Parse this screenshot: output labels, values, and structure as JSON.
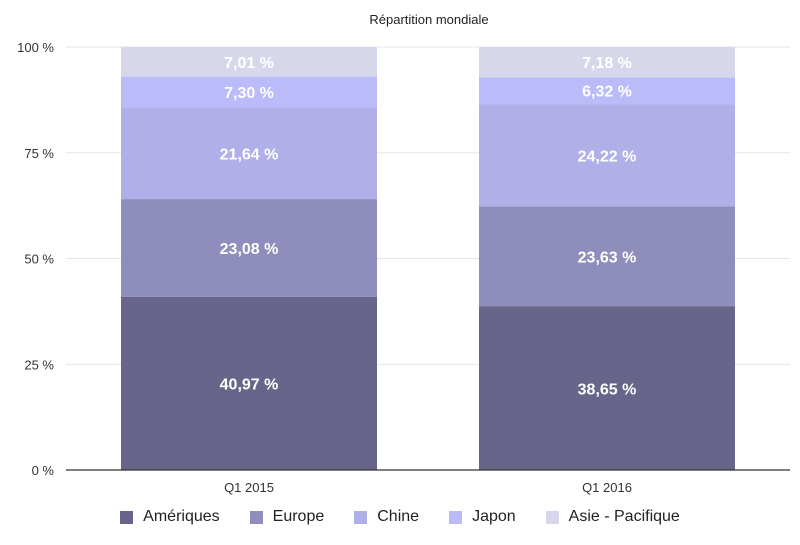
{
  "chart_data": {
    "type": "bar",
    "stacked": true,
    "title": "Répartition mondiale",
    "categories": [
      "Q1 2015",
      "Q1 2016"
    ],
    "series": [
      {
        "name": "Amériques",
        "color": "#67668a",
        "values": [
          40.97,
          38.65
        ],
        "labels": [
          "40,97 %",
          "38,65 %"
        ]
      },
      {
        "name": "Europe",
        "color": "#8f8dbc",
        "values": [
          23.08,
          23.63
        ],
        "labels": [
          "23,08 %",
          "23,63 %"
        ]
      },
      {
        "name": "Chine",
        "color": "#b1afe8",
        "values": [
          21.64,
          24.22
        ],
        "labels": [
          "21,64 %",
          "24,22 %"
        ]
      },
      {
        "name": "Japon",
        "color": "#bcbbf9",
        "values": [
          7.3,
          6.32
        ],
        "labels": [
          "7,30 %",
          "6,32 %"
        ]
      },
      {
        "name": "Asie - Pacifique",
        "color": "#d7d7ec",
        "values": [
          7.01,
          7.18
        ],
        "labels": [
          "7,01 %",
          "7,18 %"
        ]
      }
    ],
    "ylim": [
      0,
      100
    ],
    "yticks": [
      0,
      25,
      50,
      75,
      100
    ],
    "ytick_labels": [
      "0 %",
      "25 %",
      "50 %",
      "75 %",
      "100 %"
    ],
    "grid": true,
    "legend_position": "bottom"
  }
}
